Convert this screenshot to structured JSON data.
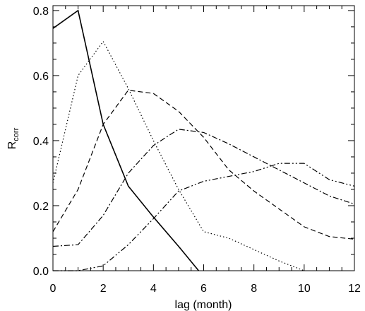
{
  "chart_data": {
    "type": "line",
    "x_label": "lag (month)",
    "y_label": "R",
    "y_label_sub": "corr",
    "xlim": [
      0,
      12
    ],
    "xticks": [
      0,
      2,
      4,
      6,
      8,
      10,
      12
    ],
    "ylim": [
      0,
      0.815
    ],
    "yticks": [
      {
        "value": 0,
        "label": "0.0"
      },
      0.2,
      0.4,
      0.6,
      0.8
    ],
    "series": [
      {
        "color": "#000000",
        "dash": "solid",
        "x": [
          0,
          1,
          2,
          3,
          4,
          5,
          5.8
        ],
        "values": [
          0.745,
          0.8,
          0.45,
          0.26,
          0.165,
          0.075,
          0
        ]
      },
      {
        "color": "#000000",
        "dash": "dotted",
        "x": [
          0,
          1,
          2,
          3,
          4,
          5,
          6,
          7,
          8,
          9,
          10
        ],
        "values": [
          0.27,
          0.6,
          0.705,
          0.56,
          0.4,
          0.25,
          0.12,
          0.1,
          0.065,
          0.03,
          0
        ]
      },
      {
        "color": "#000000",
        "dash": "dashed",
        "x": [
          0,
          1,
          2,
          3,
          4,
          5,
          6,
          7,
          8,
          9,
          10,
          11,
          12
        ],
        "values": [
          0.12,
          0.25,
          0.45,
          0.555,
          0.545,
          0.49,
          0.41,
          0.31,
          0.245,
          0.19,
          0.135,
          0.105,
          0.097
        ]
      },
      {
        "color": "#000000",
        "dash": "dashdot",
        "x": [
          0,
          1,
          2,
          3,
          4,
          5,
          6,
          7,
          8,
          9,
          10,
          11,
          12
        ],
        "values": [
          0.075,
          0.08,
          0.17,
          0.3,
          0.385,
          0.435,
          0.425,
          0.39,
          0.35,
          0.31,
          0.27,
          0.23,
          0.205
        ]
      },
      {
        "color": "#000000",
        "dash": "dashdotdot",
        "x": [
          0,
          1,
          2,
          3,
          4,
          5,
          6,
          7,
          8,
          9,
          10,
          11,
          12
        ],
        "values": [
          0,
          0,
          0.015,
          0.08,
          0.16,
          0.245,
          0.275,
          0.29,
          0.305,
          0.33,
          0.33,
          0.28,
          0.26
        ]
      }
    ]
  }
}
